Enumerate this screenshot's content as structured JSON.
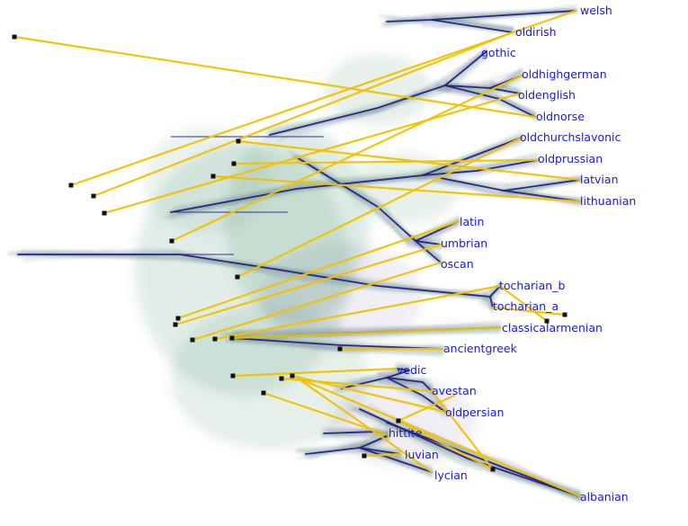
{
  "colors": {
    "background": "#ffffff",
    "tree_line": "#2a1a8a",
    "haze_green": "#5c9c7a",
    "haze_purple": "#6b5aa0",
    "link_line": "#f2c200",
    "node_dot": "#111111",
    "label_text": "#1a1ad0"
  },
  "languages": [
    {
      "id": "welsh",
      "label": "welsh"
    },
    {
      "id": "oldirish",
      "label": "oldirish"
    },
    {
      "id": "gothic",
      "label": "gothic"
    },
    {
      "id": "oldhighgerman",
      "label": "oldhighgerman"
    },
    {
      "id": "oldenglish",
      "label": "oldenglish"
    },
    {
      "id": "oldnorse",
      "label": "oldnorse"
    },
    {
      "id": "oldchurchslavonic",
      "label": "oldchurchslavonic"
    },
    {
      "id": "oldprussian",
      "label": "oldprussian"
    },
    {
      "id": "latvian",
      "label": "latvian"
    },
    {
      "id": "lithuanian",
      "label": "lithuanian"
    },
    {
      "id": "latin",
      "label": "latin"
    },
    {
      "id": "umbrian",
      "label": "umbrian"
    },
    {
      "id": "oscan",
      "label": "oscan"
    },
    {
      "id": "tocharian_b",
      "label": "tocharian_b"
    },
    {
      "id": "tocharian_a",
      "label": "tocharian_a"
    },
    {
      "id": "classicalarmenian",
      "label": "classicalarmenian"
    },
    {
      "id": "ancientgreek",
      "label": "ancientgreek"
    },
    {
      "id": "vedic",
      "label": "vedic"
    },
    {
      "id": "avestan",
      "label": "avestan"
    },
    {
      "id": "oldpersian",
      "label": "oldpersian"
    },
    {
      "id": "hittite",
      "label": "hittite"
    },
    {
      "id": "luvian",
      "label": "luvian"
    },
    {
      "id": "lycian",
      "label": "lycian"
    },
    {
      "id": "albanian",
      "label": "albanian"
    }
  ]
}
